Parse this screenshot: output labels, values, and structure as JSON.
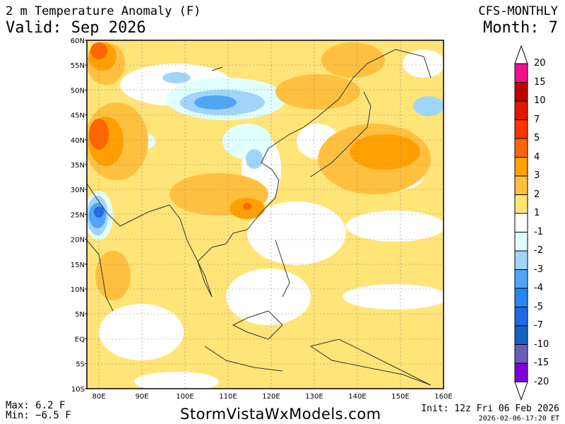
{
  "header": {
    "title": "2 m Temperature Anomaly (F)",
    "valid": "Valid: Sep 2026",
    "model": "CFS-MONTHLY",
    "month": "Month: 7"
  },
  "map": {
    "lat_labels": [
      "60N",
      "55N",
      "50N",
      "45N",
      "40N",
      "35N",
      "30N",
      "25N",
      "20N",
      "15N",
      "10N",
      "5N",
      "EQ",
      "5S",
      "10S"
    ],
    "lon_labels": [
      "80E",
      "90E",
      "100E",
      "110E",
      "120E",
      "130E",
      "140E",
      "150E",
      "160E"
    ]
  },
  "colorbar": {
    "labels": [
      "20",
      "15",
      "10",
      "7",
      "5",
      "4",
      "3",
      "2",
      "1",
      "-1",
      "-2",
      "-3",
      "-4",
      "-5",
      "-7",
      "-10",
      "-15",
      "-20"
    ],
    "colors": [
      "#f0108c",
      "#c00000",
      "#e01800",
      "#ff3300",
      "#ff6600",
      "#ffa000",
      "#ffc040",
      "#ffe478",
      "#ffffff",
      "#e0ffff",
      "#a0d4fa",
      "#50a5f5",
      "#2a86f0",
      "#1e6ae6",
      "#1464c8",
      "#6a5fb4",
      "#8000dc"
    ]
  },
  "footer": {
    "max": "Max: 6.2 F",
    "min": "Min: −6.5 F",
    "site": "StormVistaWxModels.com",
    "init": "Init: 12z Fri 06 Feb 2026",
    "stamp": "2026-02-06-17:20 ET"
  }
}
